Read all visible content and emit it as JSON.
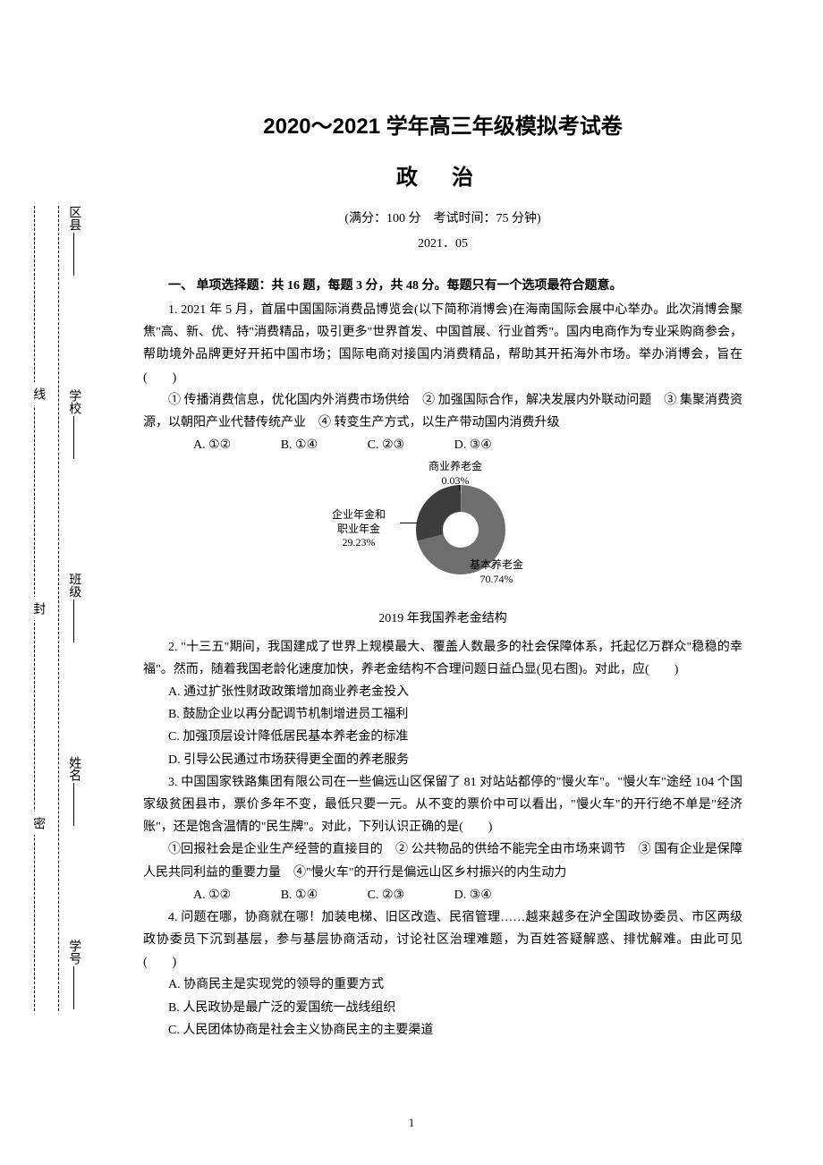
{
  "header": {
    "title": "2020～2021 学年高三年级模拟考试卷",
    "subject": "政治",
    "meta": "(满分：100 分　考试时间：75 分钟)",
    "date": "2021．05"
  },
  "sidebar": {
    "seal_labels": [
      "密",
      "封",
      "线"
    ],
    "categories": [
      {
        "label": "区县"
      },
      {
        "label": "学校"
      },
      {
        "label": "班级"
      },
      {
        "label": "姓名"
      },
      {
        "label": "学号"
      }
    ]
  },
  "section1": {
    "header": "一、 单项选择题：共 16 题，每题 3 分，共 48 分。每题只有一个选项最符合题意。"
  },
  "q1": {
    "stem": "1. 2021 年 5 月，首届中国国际消费品博览会(以下简称消博会)在海南国际会展中心举办。此次消博会聚焦\"高、新、优、特\"消费精品，吸引更多\"世界首发、中国首展、行业首秀\"。国内电商作为专业采购商参会，帮助境外品牌更好开拓中国市场；国际电商对接国内消费精品，帮助其开拓海外市场。举办消博会，旨在(　　)",
    "items": "① 传播消费信息，优化国内外消费市场供给　② 加强国际合作，解决发展内外联动问题　③ 集聚消费资源，以朝阳产业代替传统产业　④ 转变生产方式，以生产带动国内消费升级",
    "opts": {
      "A": "A. ①②",
      "B": "B. ①④",
      "C": "C. ②③",
      "D": "D. ③④"
    }
  },
  "chart": {
    "type": "pie",
    "caption": "2019 年我国养老金结构",
    "segments": [
      {
        "label": "商业养老金",
        "value": 0.03,
        "color": "#a4a4a4"
      },
      {
        "label": "企业年金和\n职业年金",
        "value": 29.23,
        "color": "#3d3d3d"
      },
      {
        "label": "基本养老金",
        "value": 70.74,
        "color": "#6e6e6e"
      }
    ],
    "bg": "#ffffff",
    "label_fontsize": 12,
    "caption_fontsize": 14
  },
  "q2": {
    "stem": "2. \"十三五\"期间，我国建成了世界上规模最大、覆盖人数最多的社会保障体系，托起亿万群众\"稳稳的幸福\"。然而，随着我国老龄化速度加快，养老金结构不合理问题日益凸显(见右图)。对此，应(　　)",
    "opts": {
      "A": "A. 通过扩张性财政政策增加商业养老金投入",
      "B": "B. 鼓励企业以再分配调节机制增进员工福利",
      "C": "C. 加强顶层设计降低居民基本养老金的标准",
      "D": "D. 引导公民通过市场获得更全面的养老服务"
    }
  },
  "q3": {
    "stem": "3. 中国国家铁路集团有限公司在一些偏远山区保留了 81 对站站都停的\"慢火车\"。\"慢火车\"途经 104 个国家级贫困县市，票价多年不变，最低只要一元。从不变的票价中可以看出，\"慢火车\"的开行绝不单是\"经济账\"，还是饱含温情的\"民生牌\"。对此，下列认识正确的是(　　)",
    "items": "①回报社会是企业生产经营的直接目的　② 公共物品的供给不能完全由市场来调节　③ 国有企业是保障人民共同利益的重要力量　④\"慢火车\"的开行是偏远山区乡村振兴的内生动力",
    "opts": {
      "A": "A. ①②",
      "B": "B. ①④",
      "C": "C. ②③",
      "D": "D. ③④"
    }
  },
  "q4": {
    "stem": "4. 问题在哪，协商就在哪！加装电梯、旧区改造、民宿管理……越来越多在沪全国政协委员、市区两级政协委员下沉到基层，参与基层协商活动，讨论社区治理难题，为百姓答疑解惑、排忧解难。由此可见　(　　)",
    "opts": {
      "A": "A. 协商民主是实现党的领导的重要方式",
      "B": "B. 人民政协是最广泛的爱国统一战线组织",
      "C": "C. 人民团体协商是社会主义协商民主的主要渠道"
    }
  },
  "page_number": "1"
}
